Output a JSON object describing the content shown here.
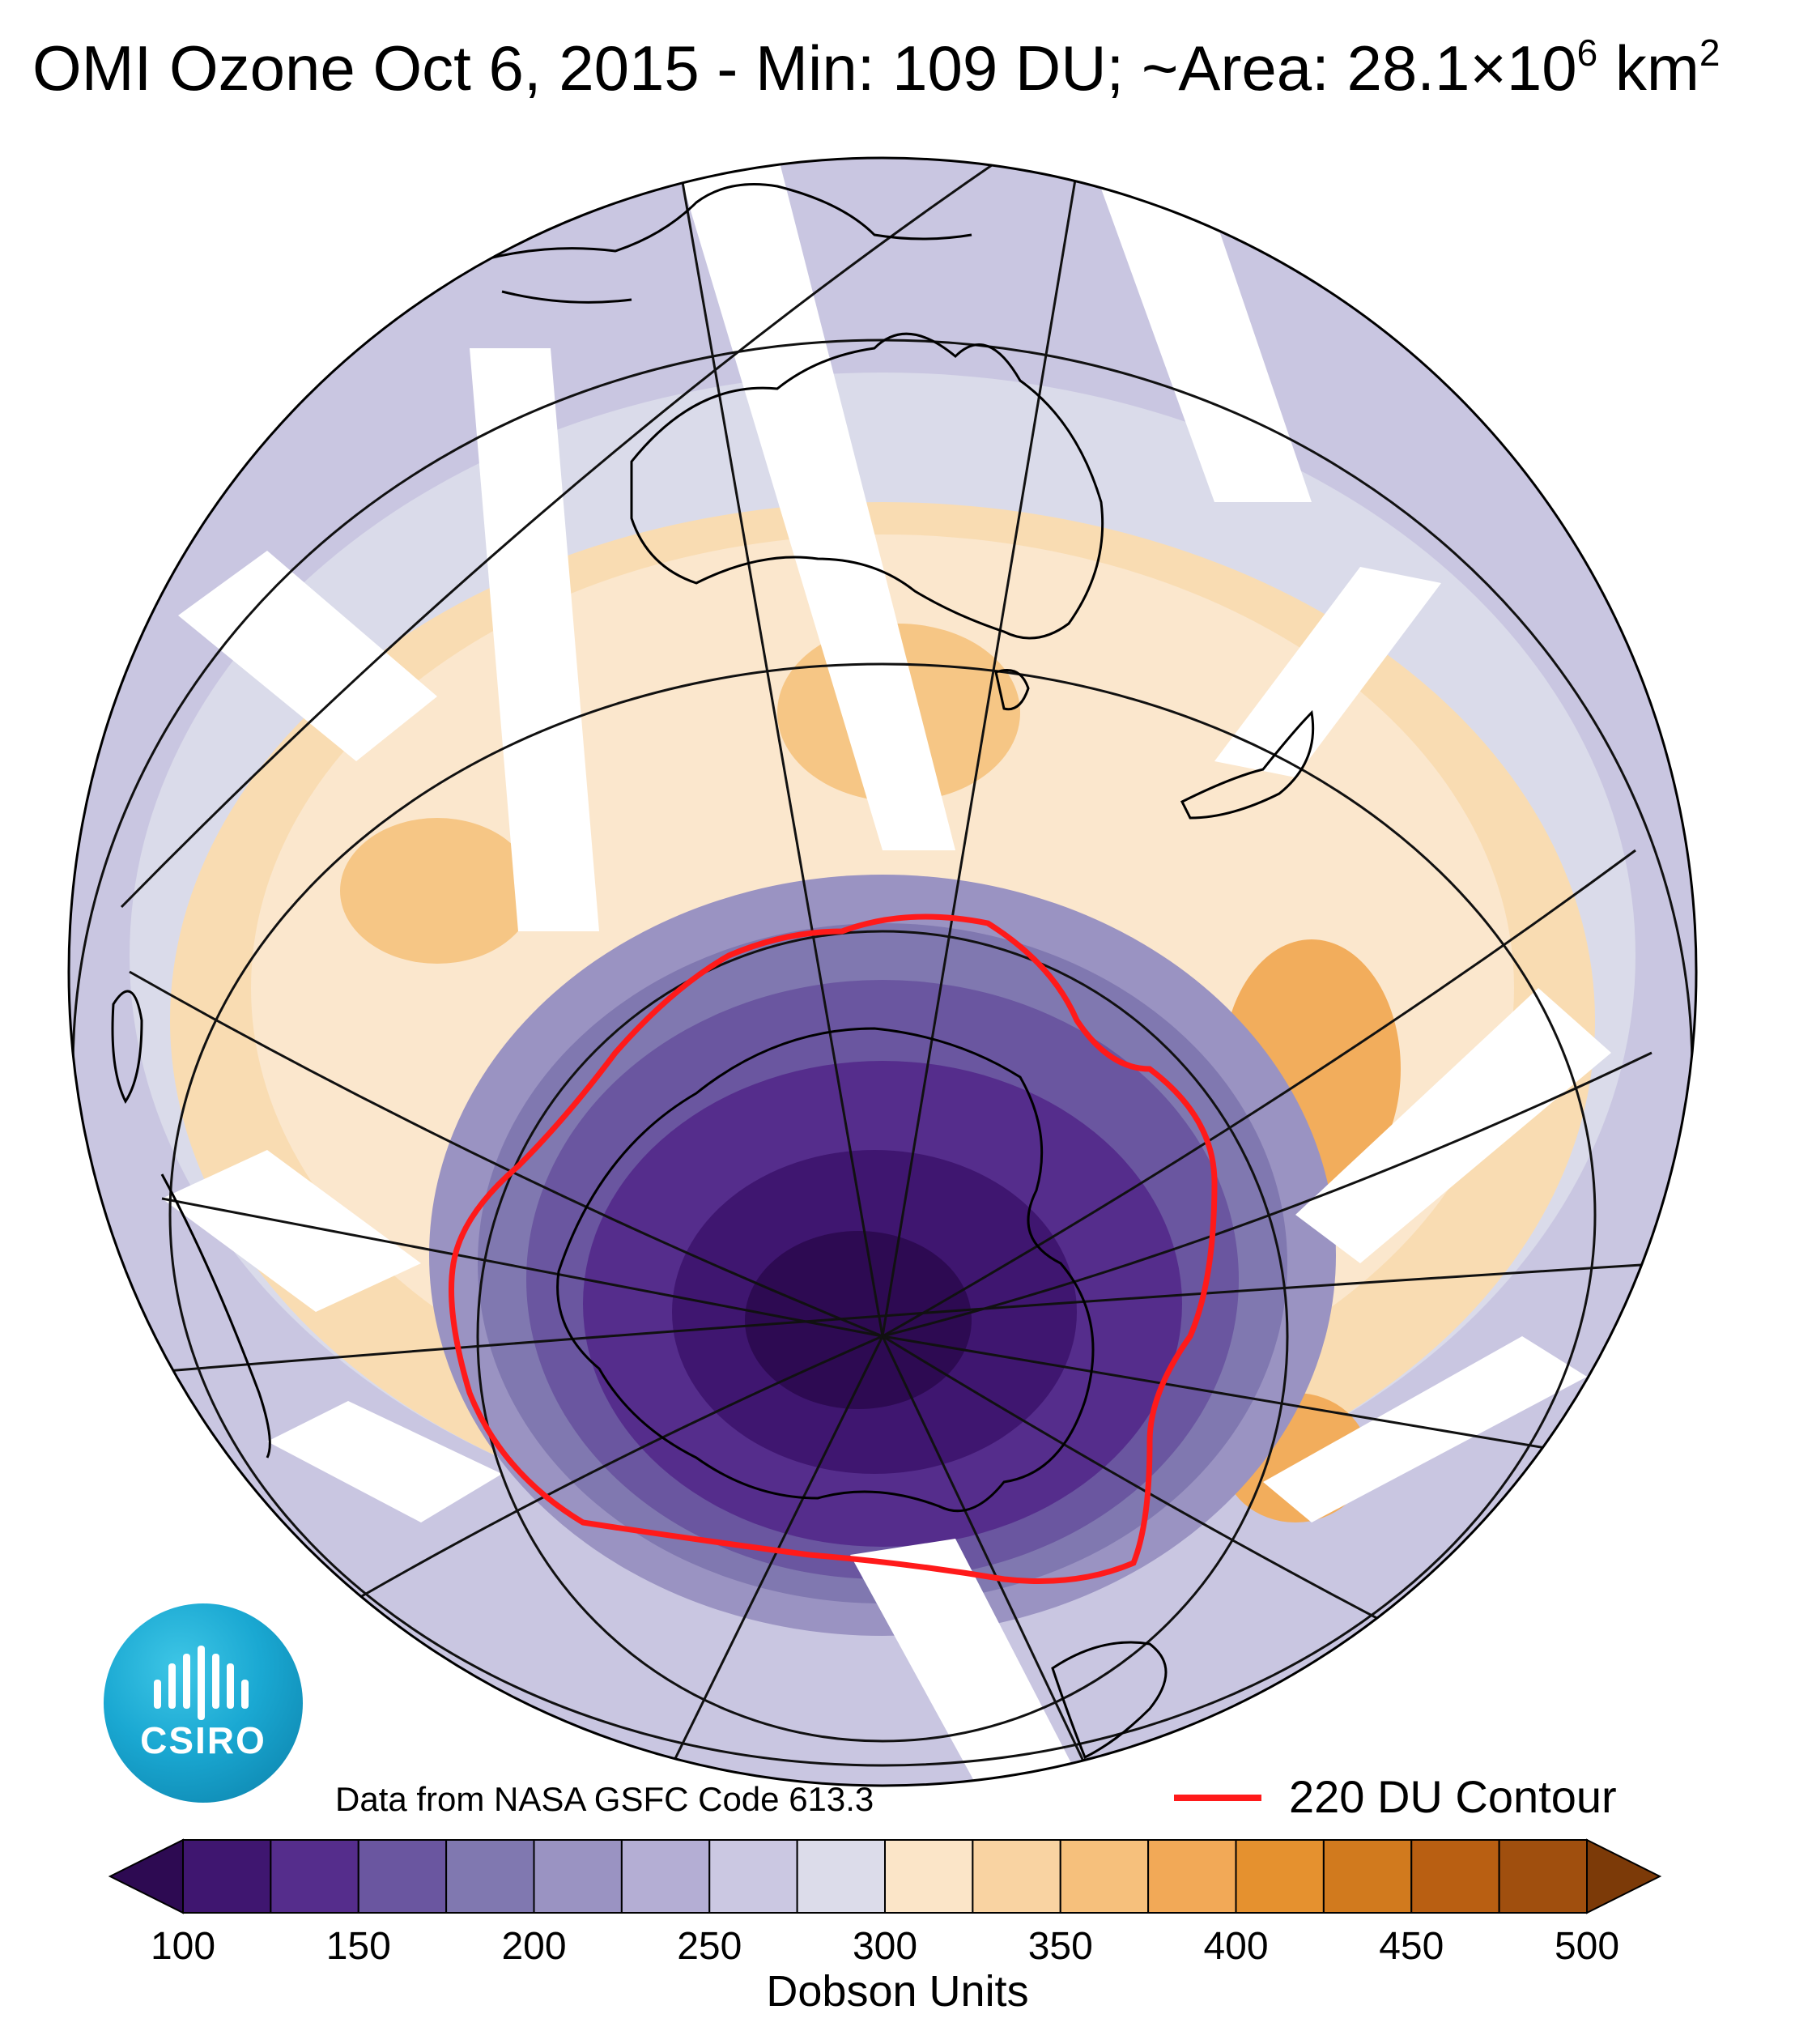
{
  "title": {
    "main": "OMI Ozone  Oct  6, 2015 - Min: 109 DU; ~Area: 28.1×10",
    "exp": "6",
    "tail": " km",
    "exp2": "2"
  },
  "credit": "Data from NASA GSFC Code 613.3",
  "legend": {
    "contour_label": "220 DU Contour",
    "contour_color": "#ff1a1a"
  },
  "logo": {
    "text": "CSIRO"
  },
  "colorbar": {
    "label": "Dobson Units",
    "ticks": [
      "100",
      "150",
      "200",
      "250",
      "300",
      "350",
      "400",
      "450",
      "500"
    ],
    "colors": [
      "#2d0a52",
      "#3f1670",
      "#552d8c",
      "#6a56a0",
      "#8078b0",
      "#9a93c2",
      "#b4aed4",
      "#cbc8e2",
      "#dcdcea",
      "#fbe5c8",
      "#f9d3a2",
      "#f6c07c",
      "#f2a957",
      "#e5912f",
      "#d17a1e",
      "#b95f12",
      "#a04f0e",
      "#7c3a08"
    ]
  }
}
